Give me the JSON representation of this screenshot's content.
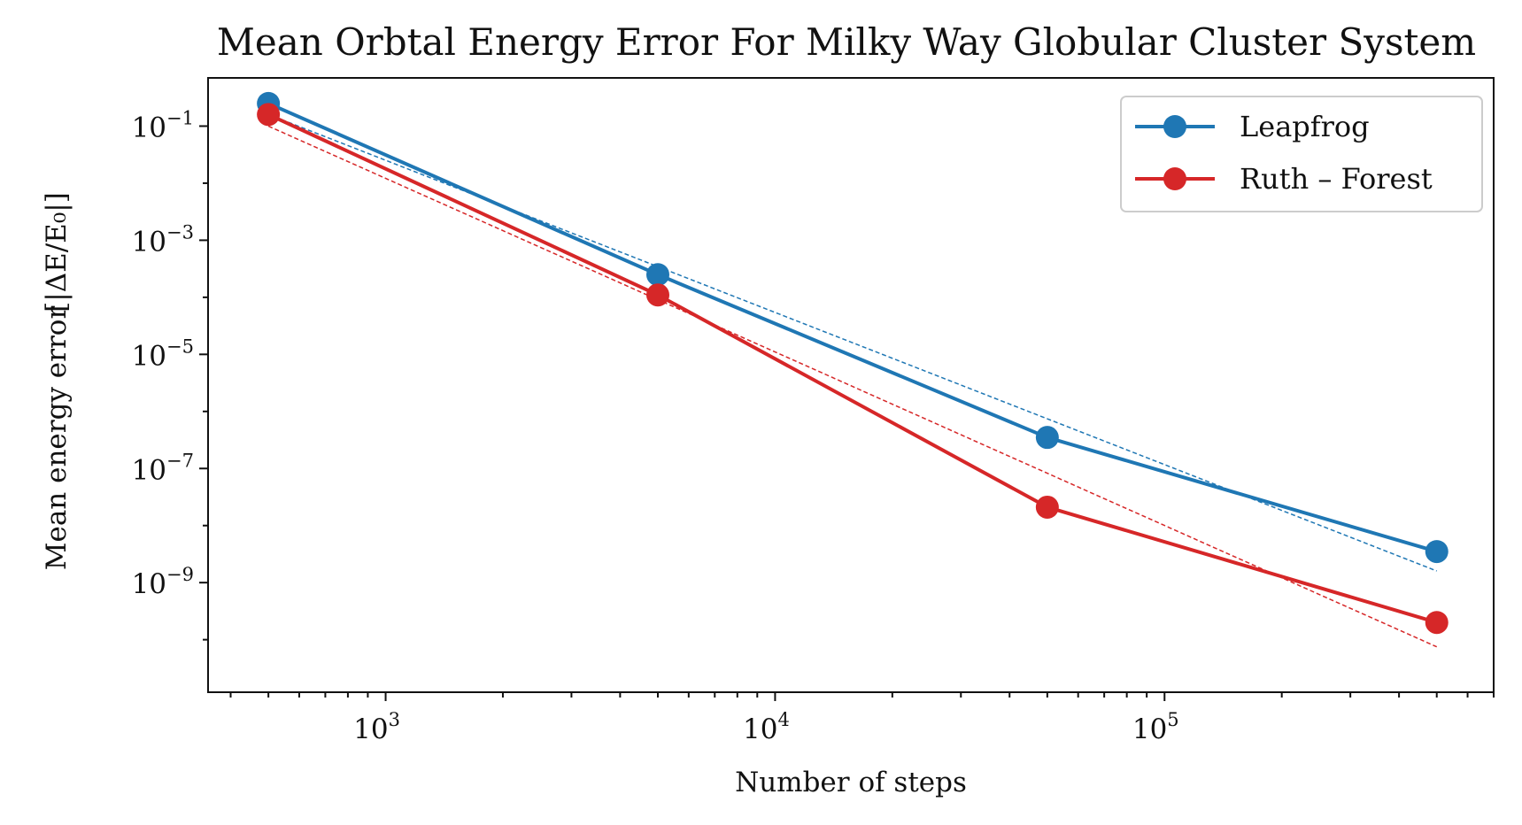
{
  "chart_data": {
    "type": "line",
    "title": "Mean Orbtal Energy Error For Milky Way Globular Cluster System",
    "xlabel": "Number of steps",
    "ylabel": "Mean energy error",
    "ylabel_formula": "[|ΔE/E₀|]",
    "xscale": "log",
    "yscale": "log",
    "xlim": [
      350,
      700000
    ],
    "ylim": [
      1.2e-11,
      0.7
    ],
    "x_ticks": [
      {
        "base": "10",
        "exp": "3",
        "value": 1000
      },
      {
        "base": "10",
        "exp": "4",
        "value": 10000
      },
      {
        "base": "10",
        "exp": "5",
        "value": 100000
      }
    ],
    "y_ticks": [
      {
        "base": "10",
        "exp": "−1",
        "value": 0.1
      },
      {
        "base": "10",
        "exp": "−3",
        "value": 0.001
      },
      {
        "base": "10",
        "exp": "−5",
        "value": 1e-05
      },
      {
        "base": "10",
        "exp": "−7",
        "value": 1e-07
      },
      {
        "base": "10",
        "exp": "−9",
        "value": 1e-09
      }
    ],
    "x": [
      500,
      5000,
      50000,
      500000
    ],
    "series": [
      {
        "name": "Leapfrog",
        "color": "#1f77b4",
        "values": [
          0.25,
          0.00025,
          3.5e-07,
          3.5e-09
        ],
        "fit": {
          "x": [
            500,
            500000
          ],
          "y": [
            0.16,
            1.6e-09
          ]
        }
      },
      {
        "name": "Ruth – Forest",
        "color": "#d62728",
        "values": [
          0.16,
          0.00011,
          2.1e-08,
          2e-10
        ],
        "fit": {
          "x": [
            500,
            500000
          ],
          "y": [
            0.1,
            7.5e-11
          ]
        }
      }
    ],
    "grid": false,
    "legend_position": "top-right"
  }
}
